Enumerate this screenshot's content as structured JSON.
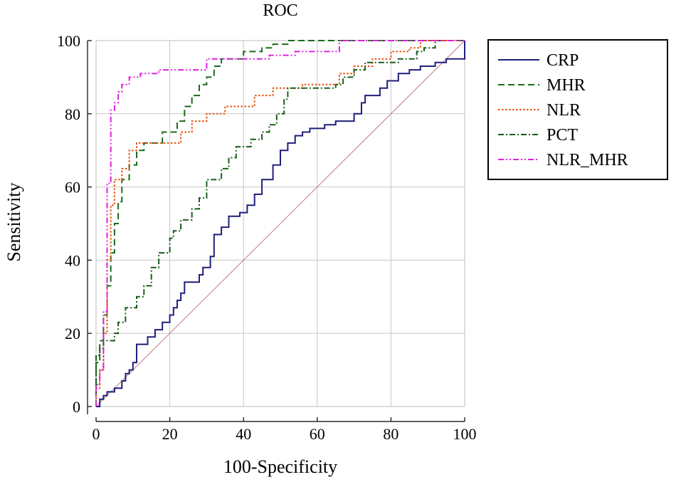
{
  "chart_data": {
    "type": "line",
    "title": "ROC",
    "xlabel": "100-Specificity",
    "ylabel": "Sensitivity",
    "xlim": [
      0,
      100
    ],
    "ylim": [
      0,
      100
    ],
    "x_ticks": [
      "0",
      "20",
      "40",
      "60",
      "80",
      "100"
    ],
    "y_ticks": [
      "0",
      "20",
      "40",
      "60",
      "80",
      "100"
    ],
    "grid": true,
    "legend_position": "right",
    "reference_line": {
      "name": "chance",
      "color": "#c47a7a",
      "points": [
        [
          0,
          0
        ],
        [
          100,
          100
        ]
      ]
    },
    "series": [
      {
        "name": "CRP",
        "color": "#1f1f7a",
        "dash": "solid",
        "points": [
          [
            0,
            0
          ],
          [
            1,
            0
          ],
          [
            1,
            2
          ],
          [
            2,
            2
          ],
          [
            2,
            3
          ],
          [
            3,
            3
          ],
          [
            3,
            4
          ],
          [
            5,
            4
          ],
          [
            5,
            5
          ],
          [
            7,
            5
          ],
          [
            7,
            7
          ],
          [
            8,
            7
          ],
          [
            8,
            9
          ],
          [
            9,
            9
          ],
          [
            9,
            10
          ],
          [
            10,
            10
          ],
          [
            10,
            12
          ],
          [
            11,
            12
          ],
          [
            11,
            17
          ],
          [
            14,
            17
          ],
          [
            14,
            19
          ],
          [
            16,
            19
          ],
          [
            16,
            21
          ],
          [
            18,
            21
          ],
          [
            18,
            23
          ],
          [
            20,
            23
          ],
          [
            20,
            25
          ],
          [
            21,
            25
          ],
          [
            21,
            27
          ],
          [
            22,
            27
          ],
          [
            22,
            29
          ],
          [
            23,
            29
          ],
          [
            23,
            31
          ],
          [
            24,
            31
          ],
          [
            24,
            34
          ],
          [
            28,
            34
          ],
          [
            28,
            36
          ],
          [
            29,
            36
          ],
          [
            29,
            38
          ],
          [
            31,
            38
          ],
          [
            31,
            41
          ],
          [
            32,
            41
          ],
          [
            32,
            47
          ],
          [
            34,
            47
          ],
          [
            34,
            49
          ],
          [
            36,
            49
          ],
          [
            36,
            52
          ],
          [
            39,
            52
          ],
          [
            39,
            53
          ],
          [
            41,
            53
          ],
          [
            41,
            55
          ],
          [
            43,
            55
          ],
          [
            43,
            58
          ],
          [
            45,
            58
          ],
          [
            45,
            62
          ],
          [
            48,
            62
          ],
          [
            48,
            66
          ],
          [
            50,
            66
          ],
          [
            50,
            70
          ],
          [
            52,
            70
          ],
          [
            52,
            72
          ],
          [
            54,
            72
          ],
          [
            54,
            74
          ],
          [
            56,
            74
          ],
          [
            56,
            75
          ],
          [
            58,
            75
          ],
          [
            58,
            76
          ],
          [
            62,
            76
          ],
          [
            62,
            77
          ],
          [
            65,
            77
          ],
          [
            65,
            78
          ],
          [
            70,
            78
          ],
          [
            70,
            80
          ],
          [
            72,
            80
          ],
          [
            72,
            83
          ],
          [
            73,
            83
          ],
          [
            73,
            85
          ],
          [
            77,
            85
          ],
          [
            77,
            87
          ],
          [
            79,
            87
          ],
          [
            79,
            89
          ],
          [
            82,
            89
          ],
          [
            82,
            91
          ],
          [
            85,
            91
          ],
          [
            85,
            92
          ],
          [
            88,
            92
          ],
          [
            88,
            93
          ],
          [
            92,
            93
          ],
          [
            92,
            94
          ],
          [
            95,
            94
          ],
          [
            95,
            95
          ],
          [
            100,
            95
          ],
          [
            100,
            100
          ]
        ]
      },
      {
        "name": "MHR",
        "color": "#1a6b1a",
        "dash": "long-dash",
        "points": [
          [
            0,
            0
          ],
          [
            0,
            12
          ],
          [
            1,
            12
          ],
          [
            1,
            18
          ],
          [
            2,
            18
          ],
          [
            2,
            25
          ],
          [
            3,
            25
          ],
          [
            3,
            33
          ],
          [
            4,
            33
          ],
          [
            4,
            42
          ],
          [
            5,
            42
          ],
          [
            5,
            50
          ],
          [
            6,
            50
          ],
          [
            6,
            56
          ],
          [
            7,
            56
          ],
          [
            7,
            62
          ],
          [
            9,
            62
          ],
          [
            9,
            66
          ],
          [
            11,
            66
          ],
          [
            11,
            70
          ],
          [
            13,
            70
          ],
          [
            13,
            72
          ],
          [
            18,
            72
          ],
          [
            18,
            75
          ],
          [
            22,
            75
          ],
          [
            22,
            78
          ],
          [
            24,
            78
          ],
          [
            24,
            82
          ],
          [
            26,
            82
          ],
          [
            26,
            85
          ],
          [
            28,
            85
          ],
          [
            28,
            88
          ],
          [
            30,
            88
          ],
          [
            30,
            90
          ],
          [
            32,
            90
          ],
          [
            32,
            93
          ],
          [
            34,
            93
          ],
          [
            34,
            95
          ],
          [
            40,
            95
          ],
          [
            40,
            97
          ],
          [
            45,
            97
          ],
          [
            45,
            98
          ],
          [
            48,
            98
          ],
          [
            48,
            99
          ],
          [
            52,
            99
          ],
          [
            52,
            100
          ],
          [
            100,
            100
          ]
        ]
      },
      {
        "name": "NLR",
        "color": "#e8520a",
        "dash": "dot",
        "points": [
          [
            0,
            0
          ],
          [
            0,
            5
          ],
          [
            1,
            5
          ],
          [
            1,
            10
          ],
          [
            2,
            10
          ],
          [
            2,
            20
          ],
          [
            3,
            20
          ],
          [
            3,
            40
          ],
          [
            4,
            40
          ],
          [
            4,
            55
          ],
          [
            5,
            55
          ],
          [
            5,
            62
          ],
          [
            7,
            62
          ],
          [
            7,
            65
          ],
          [
            9,
            65
          ],
          [
            9,
            70
          ],
          [
            11,
            70
          ],
          [
            11,
            72
          ],
          [
            23,
            72
          ],
          [
            23,
            75
          ],
          [
            26,
            75
          ],
          [
            26,
            78
          ],
          [
            30,
            78
          ],
          [
            30,
            80
          ],
          [
            35,
            80
          ],
          [
            35,
            82
          ],
          [
            43,
            82
          ],
          [
            43,
            85
          ],
          [
            48,
            85
          ],
          [
            48,
            87
          ],
          [
            56,
            87
          ],
          [
            56,
            88
          ],
          [
            66,
            88
          ],
          [
            66,
            91
          ],
          [
            70,
            91
          ],
          [
            70,
            93
          ],
          [
            75,
            93
          ],
          [
            75,
            95
          ],
          [
            80,
            95
          ],
          [
            80,
            97
          ],
          [
            85,
            97
          ],
          [
            85,
            98
          ],
          [
            88,
            98
          ],
          [
            88,
            100
          ],
          [
            100,
            100
          ]
        ]
      },
      {
        "name": "PCT",
        "color": "#1a5c1a",
        "dash": "dash-dot",
        "points": [
          [
            0,
            0
          ],
          [
            0,
            14
          ],
          [
            1,
            14
          ],
          [
            1,
            16
          ],
          [
            2,
            16
          ],
          [
            2,
            18
          ],
          [
            5,
            18
          ],
          [
            5,
            20
          ],
          [
            6,
            20
          ],
          [
            6,
            23
          ],
          [
            8,
            23
          ],
          [
            8,
            27
          ],
          [
            11,
            27
          ],
          [
            11,
            30
          ],
          [
            13,
            30
          ],
          [
            13,
            33
          ],
          [
            15,
            33
          ],
          [
            15,
            38
          ],
          [
            17,
            38
          ],
          [
            17,
            42
          ],
          [
            20,
            42
          ],
          [
            20,
            46
          ],
          [
            21,
            46
          ],
          [
            21,
            48
          ],
          [
            23,
            48
          ],
          [
            23,
            51
          ],
          [
            26,
            51
          ],
          [
            26,
            54
          ],
          [
            28,
            54
          ],
          [
            28,
            57
          ],
          [
            30,
            57
          ],
          [
            30,
            62
          ],
          [
            34,
            62
          ],
          [
            34,
            65
          ],
          [
            36,
            65
          ],
          [
            36,
            68
          ],
          [
            38,
            68
          ],
          [
            38,
            71
          ],
          [
            42,
            71
          ],
          [
            42,
            73
          ],
          [
            45,
            73
          ],
          [
            45,
            75
          ],
          [
            47,
            75
          ],
          [
            47,
            77
          ],
          [
            49,
            77
          ],
          [
            49,
            80
          ],
          [
            51,
            80
          ],
          [
            51,
            84
          ],
          [
            52,
            84
          ],
          [
            52,
            87
          ],
          [
            65,
            87
          ],
          [
            65,
            88
          ],
          [
            67,
            88
          ],
          [
            67,
            90
          ],
          [
            70,
            90
          ],
          [
            70,
            92
          ],
          [
            73,
            92
          ],
          [
            73,
            94
          ],
          [
            82,
            94
          ],
          [
            82,
            95
          ],
          [
            87,
            95
          ],
          [
            87,
            97
          ],
          [
            89,
            97
          ],
          [
            89,
            98
          ],
          [
            92,
            98
          ],
          [
            92,
            100
          ],
          [
            100,
            100
          ]
        ]
      },
      {
        "name": "NLR_MHR",
        "color": "#e020e0",
        "dash": "dash-dot-dot",
        "points": [
          [
            0,
            0
          ],
          [
            0,
            6
          ],
          [
            1,
            6
          ],
          [
            1,
            10
          ],
          [
            2,
            10
          ],
          [
            2,
            26
          ],
          [
            3,
            26
          ],
          [
            3,
            61
          ],
          [
            4,
            61
          ],
          [
            4,
            81
          ],
          [
            5,
            81
          ],
          [
            5,
            83
          ],
          [
            6,
            83
          ],
          [
            6,
            86
          ],
          [
            7,
            86
          ],
          [
            7,
            88
          ],
          [
            9,
            88
          ],
          [
            9,
            90
          ],
          [
            12,
            90
          ],
          [
            12,
            91
          ],
          [
            17,
            91
          ],
          [
            17,
            92
          ],
          [
            30,
            92
          ],
          [
            30,
            95
          ],
          [
            47,
            95
          ],
          [
            47,
            96
          ],
          [
            54,
            96
          ],
          [
            54,
            97
          ],
          [
            66,
            97
          ],
          [
            66,
            100
          ],
          [
            100,
            100
          ]
        ]
      }
    ]
  }
}
